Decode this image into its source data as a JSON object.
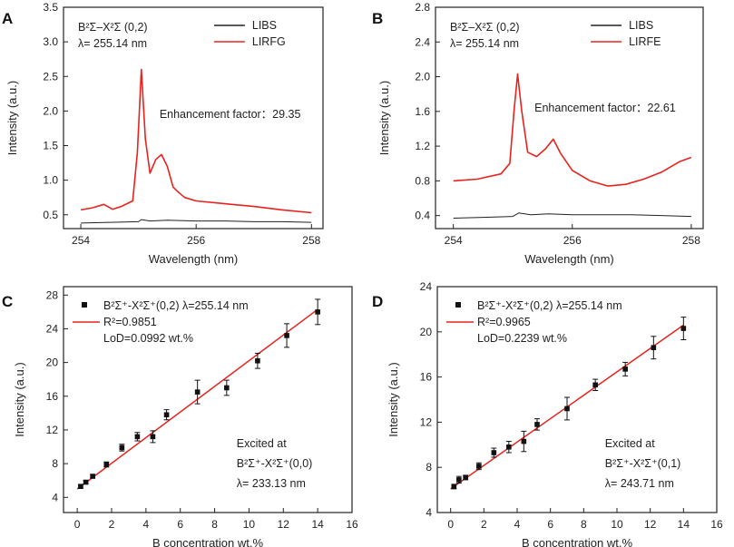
{
  "chart_data": [
    {
      "id": "A",
      "type": "line",
      "panel_label": "A",
      "xlabel": "Wavelength (nm)",
      "ylabel": "Intensity (a.u.)",
      "xlim": [
        253.7,
        258.2
      ],
      "ylim": [
        0.3,
        3.5
      ],
      "xticks": [
        254,
        256,
        258
      ],
      "yticks": [
        0.5,
        1.0,
        1.5,
        2.0,
        2.5,
        3.0,
        3.5
      ],
      "ytick_decimals": 1,
      "transition_line": "B²Σ–X²Σ (0,2)",
      "wavelength_line": "λ= 255.14 nm",
      "annotation": "Enhancement factor：29.35",
      "legend": [
        "LIBS",
        "LIRFG"
      ],
      "series": [
        {
          "name": "LIBS",
          "color": "#222222",
          "x": [
            254.0,
            254.5,
            255.0,
            255.05,
            255.2,
            255.5,
            256.0,
            256.5,
            257.0,
            257.5,
            258.0
          ],
          "y": [
            0.38,
            0.39,
            0.4,
            0.43,
            0.41,
            0.42,
            0.41,
            0.41,
            0.4,
            0.4,
            0.39
          ]
        },
        {
          "name": "LIRFG",
          "color": "#e8231e",
          "x": [
            254.0,
            254.2,
            254.4,
            254.55,
            254.7,
            254.9,
            254.98,
            255.05,
            255.12,
            255.2,
            255.3,
            255.4,
            255.5,
            255.6,
            255.7,
            255.8,
            256.0,
            256.5,
            257.0,
            257.5,
            258.0
          ],
          "y": [
            0.57,
            0.6,
            0.65,
            0.58,
            0.62,
            0.7,
            1.4,
            2.6,
            1.6,
            1.1,
            1.3,
            1.37,
            1.2,
            0.9,
            0.82,
            0.75,
            0.7,
            0.66,
            0.62,
            0.57,
            0.53
          ]
        }
      ]
    },
    {
      "id": "B",
      "type": "line",
      "panel_label": "B",
      "xlabel": "Wavelength (nm)",
      "ylabel": "Intensity (a.u.)",
      "xlim": [
        253.7,
        258.2
      ],
      "ylim": [
        0.25,
        2.8
      ],
      "xticks": [
        254,
        256,
        258
      ],
      "yticks": [
        0.4,
        0.8,
        1.2,
        1.6,
        2.0,
        2.4,
        2.8
      ],
      "ytick_decimals": 1,
      "transition_line": "B²Σ–X²Σ (0,2)",
      "wavelength_line": "λ= 255.14 nm",
      "annotation": "Enhancement factor：22.61",
      "legend": [
        "LIBS",
        "LIRFE"
      ],
      "series": [
        {
          "name": "LIBS",
          "color": "#222222",
          "x": [
            254.0,
            254.5,
            255.0,
            255.1,
            255.3,
            255.6,
            256.0,
            256.5,
            257.0,
            257.5,
            258.0
          ],
          "y": [
            0.37,
            0.38,
            0.39,
            0.43,
            0.41,
            0.42,
            0.41,
            0.41,
            0.41,
            0.4,
            0.39
          ]
        },
        {
          "name": "LIRFE",
          "color": "#e8231e",
          "x": [
            254.0,
            254.4,
            254.8,
            254.95,
            255.02,
            255.08,
            255.15,
            255.25,
            255.4,
            255.55,
            255.68,
            255.8,
            256.0,
            256.3,
            256.6,
            256.9,
            257.2,
            257.5,
            257.8,
            258.0
          ],
          "y": [
            0.8,
            0.82,
            0.88,
            1.0,
            1.6,
            2.03,
            1.6,
            1.13,
            1.08,
            1.17,
            1.28,
            1.12,
            0.92,
            0.8,
            0.74,
            0.76,
            0.82,
            0.9,
            1.02,
            1.07
          ]
        }
      ]
    },
    {
      "id": "C",
      "type": "scatter",
      "panel_label": "C",
      "xlabel": "B concentration wt.%",
      "ylabel": "Intensity (a.u.)",
      "xlim": [
        -0.8,
        16
      ],
      "ylim": [
        2.2,
        29
      ],
      "xticks": [
        0,
        2,
        4,
        6,
        8,
        10,
        12,
        14,
        16
      ],
      "yticks": [
        4,
        8,
        12,
        16,
        20,
        24,
        28
      ],
      "ytick_decimals": 0,
      "legend_marker": "B²Σ⁺-X²Σ⁺(0,2) λ=255.14 nm",
      "fit_label": "R²=0.9851",
      "lod_label": "LoD=0.0992 wt.%",
      "excitation_lines": [
        "Excited at",
        "B²Σ⁺-X²Σ⁺(0,0)",
        "λ= 233.13 nm"
      ],
      "fit": {
        "x": [
          0,
          14
        ],
        "y": [
          5.0,
          26.3
        ]
      },
      "points": [
        {
          "x": 0.2,
          "y": 5.3,
          "err": 0.2
        },
        {
          "x": 0.5,
          "y": 5.8,
          "err": 0.2
        },
        {
          "x": 0.9,
          "y": 6.5,
          "err": 0.2
        },
        {
          "x": 1.7,
          "y": 7.9,
          "err": 0.3
        },
        {
          "x": 2.6,
          "y": 9.9,
          "err": 0.4
        },
        {
          "x": 3.5,
          "y": 11.2,
          "err": 0.5
        },
        {
          "x": 4.4,
          "y": 11.2,
          "err": 0.7
        },
        {
          "x": 5.2,
          "y": 13.8,
          "err": 0.6
        },
        {
          "x": 7.0,
          "y": 16.5,
          "err": 1.4
        },
        {
          "x": 8.7,
          "y": 17.0,
          "err": 0.9
        },
        {
          "x": 10.5,
          "y": 20.2,
          "err": 0.9
        },
        {
          "x": 12.2,
          "y": 23.2,
          "err": 1.4
        },
        {
          "x": 14.0,
          "y": 26.0,
          "err": 1.5
        }
      ]
    },
    {
      "id": "D",
      "type": "scatter",
      "panel_label": "D",
      "xlabel": "B concentration wt.%",
      "ylabel": "Intensity (a.u.)",
      "xlim": [
        -0.8,
        16
      ],
      "ylim": [
        4,
        24
      ],
      "xticks": [
        0,
        2,
        4,
        6,
        8,
        10,
        12,
        14,
        16
      ],
      "yticks": [
        4,
        8,
        12,
        16,
        20,
        24
      ],
      "ytick_decimals": 0,
      "legend_marker": "B²Σ⁺-X²Σ⁺(0,2) λ=255.14 nm",
      "fit_label": "R²=0.9965",
      "lod_label": "LoD=0.2239 wt.%",
      "excitation_lines": [
        "Excited at",
        "B²Σ⁺-X²Σ⁺(0,1)",
        "λ= 243.71 nm"
      ],
      "fit": {
        "x": [
          0,
          14
        ],
        "y": [
          6.1,
          20.6
        ]
      },
      "points": [
        {
          "x": 0.2,
          "y": 6.3,
          "err": 0.2
        },
        {
          "x": 0.5,
          "y": 6.9,
          "err": 0.3
        },
        {
          "x": 0.9,
          "y": 7.1,
          "err": 0.2
        },
        {
          "x": 1.7,
          "y": 8.1,
          "err": 0.3
        },
        {
          "x": 2.6,
          "y": 9.3,
          "err": 0.4
        },
        {
          "x": 3.5,
          "y": 9.8,
          "err": 0.5
        },
        {
          "x": 4.4,
          "y": 10.3,
          "err": 0.9
        },
        {
          "x": 5.2,
          "y": 11.8,
          "err": 0.5
        },
        {
          "x": 7.0,
          "y": 13.2,
          "err": 1.0
        },
        {
          "x": 8.7,
          "y": 15.3,
          "err": 0.5
        },
        {
          "x": 10.5,
          "y": 16.7,
          "err": 0.6
        },
        {
          "x": 12.2,
          "y": 18.6,
          "err": 1.0
        },
        {
          "x": 14.0,
          "y": 20.3,
          "err": 1.0
        }
      ]
    }
  ]
}
